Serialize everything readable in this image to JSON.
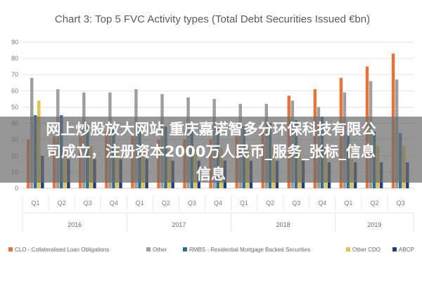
{
  "chart_data": {
    "type": "bar",
    "title": "Chart 3: Top 5 FVC Activity types (Total Debt Securities Issued €bn)",
    "ylim": [
      0,
      90
    ],
    "yticks": [
      0,
      10,
      20,
      30,
      40,
      50,
      60,
      70,
      80,
      90
    ],
    "categories": [
      "Q1",
      "Q2",
      "Q3",
      "Q4",
      "Q1",
      "Q2",
      "Q3",
      "Q4",
      "Q1",
      "Q2",
      "Q3",
      "Q4",
      "Q1",
      "Q2",
      "Q3"
    ],
    "groups": [
      {
        "label": "2016",
        "count": 4
      },
      {
        "label": "2017",
        "count": 4
      },
      {
        "label": "2018",
        "count": 4
      },
      {
        "label": "2019",
        "count": 3
      }
    ],
    "grid": true,
    "legend_position": "bottom",
    "series": [
      {
        "name": "CLO - Collateralised Loan Obligations",
        "color": "#e8733a",
        "values": [
          30,
          32,
          32,
          35,
          32,
          30,
          30,
          30,
          32,
          35,
          57,
          61,
          68,
          75,
          83
        ]
      },
      {
        "name": "Other",
        "color": "#9e9e9e",
        "values": [
          68,
          61,
          59,
          59,
          61,
          58,
          56,
          55,
          52,
          52,
          54,
          50,
          59,
          66,
          67
        ]
      },
      {
        "name": "RMBS - Residential Mortgage Backed Securities",
        "color": "#2b6e8f",
        "values": [
          45,
          45,
          40,
          40,
          39,
          38,
          37,
          37,
          38,
          40,
          42,
          44,
          33,
          35,
          34
        ]
      },
      {
        "name": "Other CDO",
        "color": "#e6c24a",
        "values": [
          54,
          24,
          26,
          25,
          24,
          24,
          25,
          25,
          25,
          25,
          25,
          25,
          25,
          26,
          26
        ]
      },
      {
        "name": "ABCP",
        "color": "#1f3e7a",
        "values": [
          20,
          18,
          18,
          18,
          18,
          17,
          17,
          17,
          17,
          17,
          17,
          16,
          16,
          16,
          16
        ]
      }
    ]
  },
  "overlay": {
    "line1": "网上炒股放大网站 重庆嘉诺智多分环保科技有限公",
    "line2": "司成立，注册资本2000万人民币_服务_张标_信息",
    "line3": "信息"
  }
}
